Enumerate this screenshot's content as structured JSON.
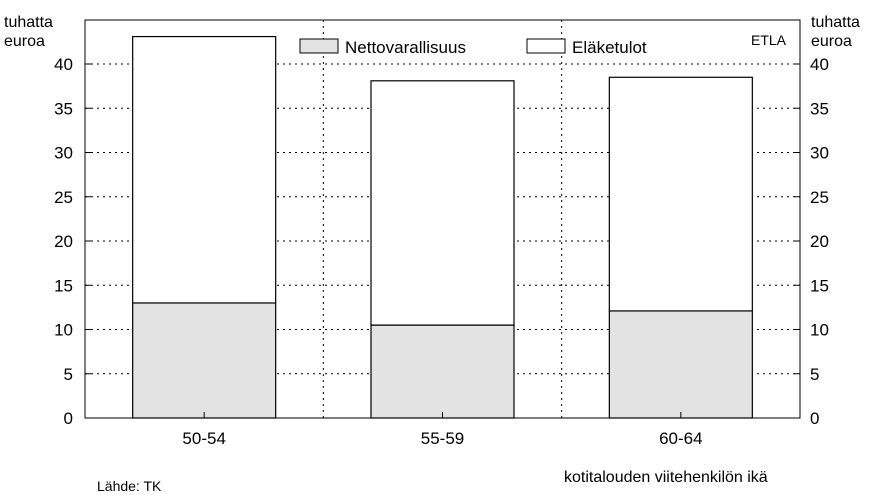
{
  "chart_data": {
    "type": "bar",
    "stacked": true,
    "categories": [
      "50-54",
      "55-59",
      "60-64"
    ],
    "series": [
      {
        "name": "Nettovarallisuus",
        "values": [
          13.0,
          10.5,
          12.1
        ],
        "color": "#e3e3e3"
      },
      {
        "name": "Eläketulot",
        "values": [
          30.1,
          27.6,
          26.4
        ],
        "color": "#ffffff"
      }
    ],
    "ylim": [
      0,
      43
    ],
    "yticks": [
      0,
      5,
      10,
      15,
      20,
      25,
      30,
      35,
      40
    ],
    "ylabel_left": [
      "tuhatta",
      "euroa"
    ],
    "ylabel_right": [
      "tuhatta",
      "euroa"
    ],
    "xlabel": "kotitalouden viitehenkilön ikä",
    "source": "Lähde: TK",
    "watermark": "ETLA",
    "grid": true,
    "legend_position": "top"
  }
}
